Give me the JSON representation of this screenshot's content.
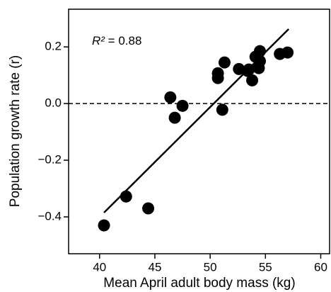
{
  "chart_data": {
    "type": "scatter",
    "xlabel": "Mean April adult body mass (kg)",
    "ylabel": "Population growth rate (r)",
    "annotation": {
      "symbol": "R²",
      "text": " = 0.88"
    },
    "xlim": [
      37.2,
      60.8
    ],
    "xticks": [
      40,
      45,
      50,
      55,
      60
    ],
    "ylim": [
      -0.53,
      0.333
    ],
    "yticks": [
      {
        "value": -0.4,
        "label": "−0.4"
      },
      {
        "value": -0.2,
        "label": "−0.2"
      },
      {
        "value": 0,
        "label": "0.0"
      },
      {
        "value": 0.2,
        "label": "0.2"
      }
    ],
    "reference_line": {
      "y": 0,
      "style": "dashed"
    },
    "series": [
      {
        "color": "#000000",
        "x": [
          40.4,
          42.4,
          44.4,
          46.4,
          46.8,
          47.5,
          50.7,
          50.7,
          51.1,
          51.3,
          52.6,
          53.4,
          53.5,
          53.8,
          54.1,
          54.4,
          54.5,
          54.5,
          56.3,
          57.0
        ],
        "values": [
          -0.43,
          -0.328,
          -0.37,
          0.022,
          -0.05,
          -0.008,
          0.09,
          0.107,
          -0.022,
          0.145,
          0.122,
          0.115,
          0.12,
          0.082,
          0.165,
          0.125,
          0.15,
          0.185,
          0.175,
          0.18
        ]
      }
    ],
    "fit_line": {
      "color": "#000000",
      "x": [
        40.4,
        57.1
      ],
      "values": [
        -0.385,
        0.263
      ]
    }
  }
}
